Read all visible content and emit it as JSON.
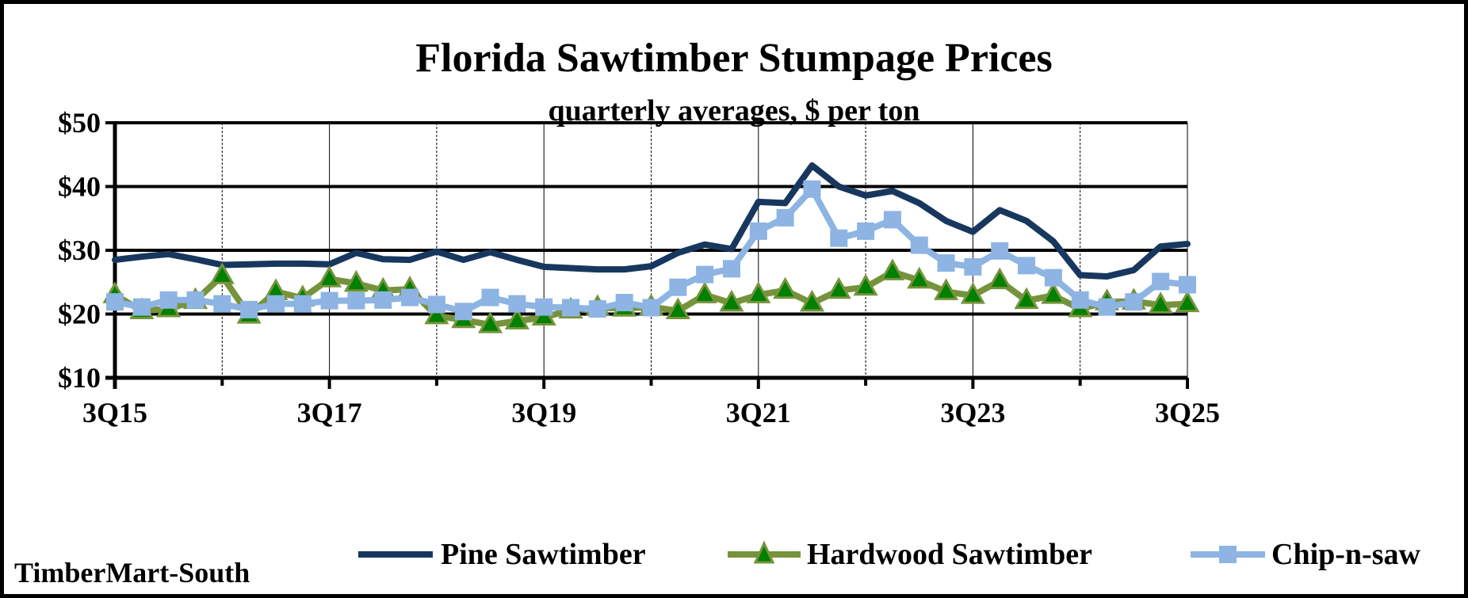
{
  "chart_data": {
    "type": "line",
    "title": "Florida Sawtimber Stumpage Prices",
    "subtitle": "quarterly averages, $ per ton",
    "xlabel": "",
    "ylabel": "",
    "source": "TimberMart-South",
    "ylim": [
      10,
      50
    ],
    "yticks": [
      10,
      20,
      30,
      40,
      50
    ],
    "ytick_labels": [
      "$10",
      "$20",
      "$30",
      "$40",
      "$50"
    ],
    "xtick_labels": [
      "3Q15",
      "3Q17",
      "3Q19",
      "3Q21",
      "3Q23",
      "3Q25"
    ],
    "xtick_label_every": 8,
    "minor_gridline_every": 4,
    "grid": true,
    "legend_position": "bottom",
    "x": [
      "3Q15",
      "4Q15",
      "1Q16",
      "2Q16",
      "3Q16",
      "4Q16",
      "1Q17",
      "2Q17",
      "3Q17",
      "4Q17",
      "1Q18",
      "2Q18",
      "3Q18",
      "4Q18",
      "1Q19",
      "2Q19",
      "3Q19",
      "4Q19",
      "1Q20",
      "2Q20",
      "3Q20",
      "4Q20",
      "1Q21",
      "2Q21",
      "3Q21",
      "4Q21",
      "1Q22",
      "2Q22",
      "3Q22",
      "4Q22",
      "1Q23",
      "2Q23",
      "3Q23",
      "4Q23",
      "1Q24",
      "2Q24",
      "3Q24",
      "4Q24",
      "1Q25",
      "2Q25",
      "3Q25"
    ],
    "series": [
      {
        "name": "Pine Sawtimber",
        "color": "#17375E",
        "marker": "none",
        "values": [
          28.5,
          29.0,
          29.4,
          28.6,
          27.7,
          27.8,
          27.9,
          27.9,
          27.8,
          29.6,
          28.6,
          28.5,
          29.8,
          28.5,
          29.7,
          28.5,
          27.4,
          27.2,
          27.0,
          27.0,
          27.5,
          29.6,
          30.9,
          30.2,
          37.6,
          37.4,
          43.3,
          40.0,
          38.6,
          39.3,
          37.4,
          34.6,
          32.9,
          36.3,
          34.6,
          31.4,
          26.1,
          25.9,
          26.9,
          30.6,
          31.0
        ]
      },
      {
        "name": "Hardwood Sawtimber",
        "color": "#76933C",
        "marker": "triangle",
        "marker_color": "#008000",
        "values": [
          23.0,
          20.5,
          20.8,
          22.1,
          26.0,
          19.8,
          23.5,
          22.5,
          25.5,
          24.8,
          23.7,
          23.9,
          19.7,
          19.1,
          18.3,
          18.9,
          19.5,
          20.6,
          21.0,
          20.9,
          21.1,
          20.5,
          23.0,
          21.7,
          23.0,
          23.7,
          21.7,
          23.7,
          24.2,
          26.6,
          25.3,
          23.5,
          22.9,
          25.2,
          22.1,
          22.9,
          20.8,
          21.9,
          22.0,
          21.4,
          21.6
        ]
      },
      {
        "name": "Chip-n-saw",
        "color": "#8DB4E2",
        "marker": "square",
        "marker_color": "#8DB4E2",
        "values": [
          21.9,
          21.1,
          22.2,
          22.2,
          21.6,
          20.7,
          21.6,
          21.6,
          22.1,
          22.1,
          22.2,
          22.6,
          21.5,
          20.4,
          22.6,
          21.6,
          21.1,
          21.0,
          20.8,
          21.8,
          21.0,
          24.2,
          26.2,
          27.1,
          33.0,
          35.1,
          39.6,
          31.9,
          33.0,
          34.8,
          30.8,
          28.0,
          27.4,
          29.9,
          27.6,
          25.7,
          22.2,
          21.1,
          21.9,
          25.1,
          24.6
        ]
      }
    ]
  }
}
